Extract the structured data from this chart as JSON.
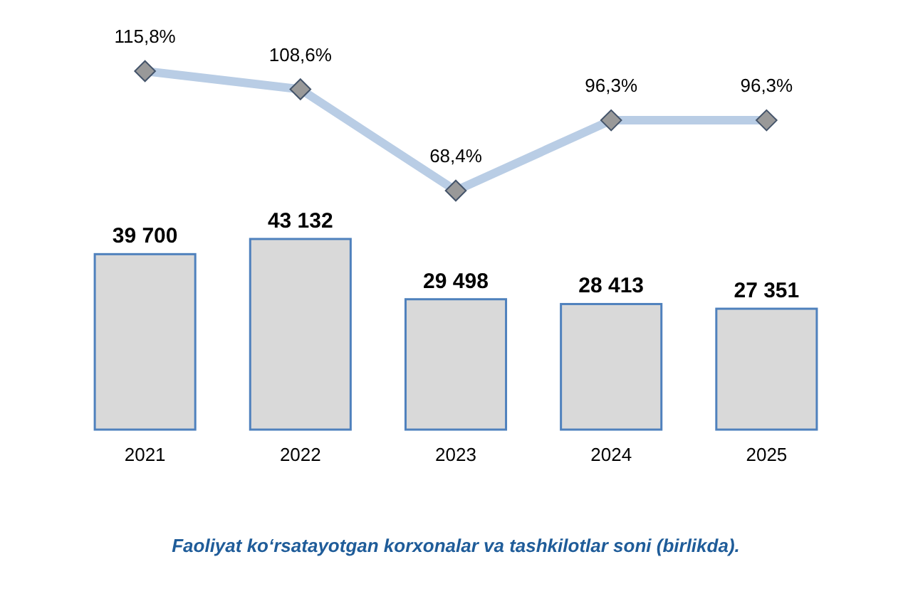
{
  "chart_data": [
    {
      "type": "line",
      "categories": [
        null,
        null,
        null,
        null,
        null
      ],
      "color": "#b9cde5",
      "marker": "diamond",
      "values": [
        115.8,
        108.6,
        68.4,
        96.3,
        96.3
      ],
      "value_labels": [
        "115,8%",
        "108,6%",
        "68,4%",
        "96,3%",
        "96,3%"
      ]
    },
    {
      "type": "bar",
      "title": "Faoliyat ko‘rsatayotgan korxonalar va tashkilotlar soni (birlikda).",
      "categories": [
        "2021",
        "2022",
        "2023",
        "2024",
        "2025"
      ],
      "color": "#d9d9d9",
      "values": [
        39700,
        43132,
        29498,
        28413,
        27351
      ],
      "value_labels": [
        "39 700",
        "43 132",
        "29 498",
        "28 413",
        "27 351"
      ]
    }
  ]
}
